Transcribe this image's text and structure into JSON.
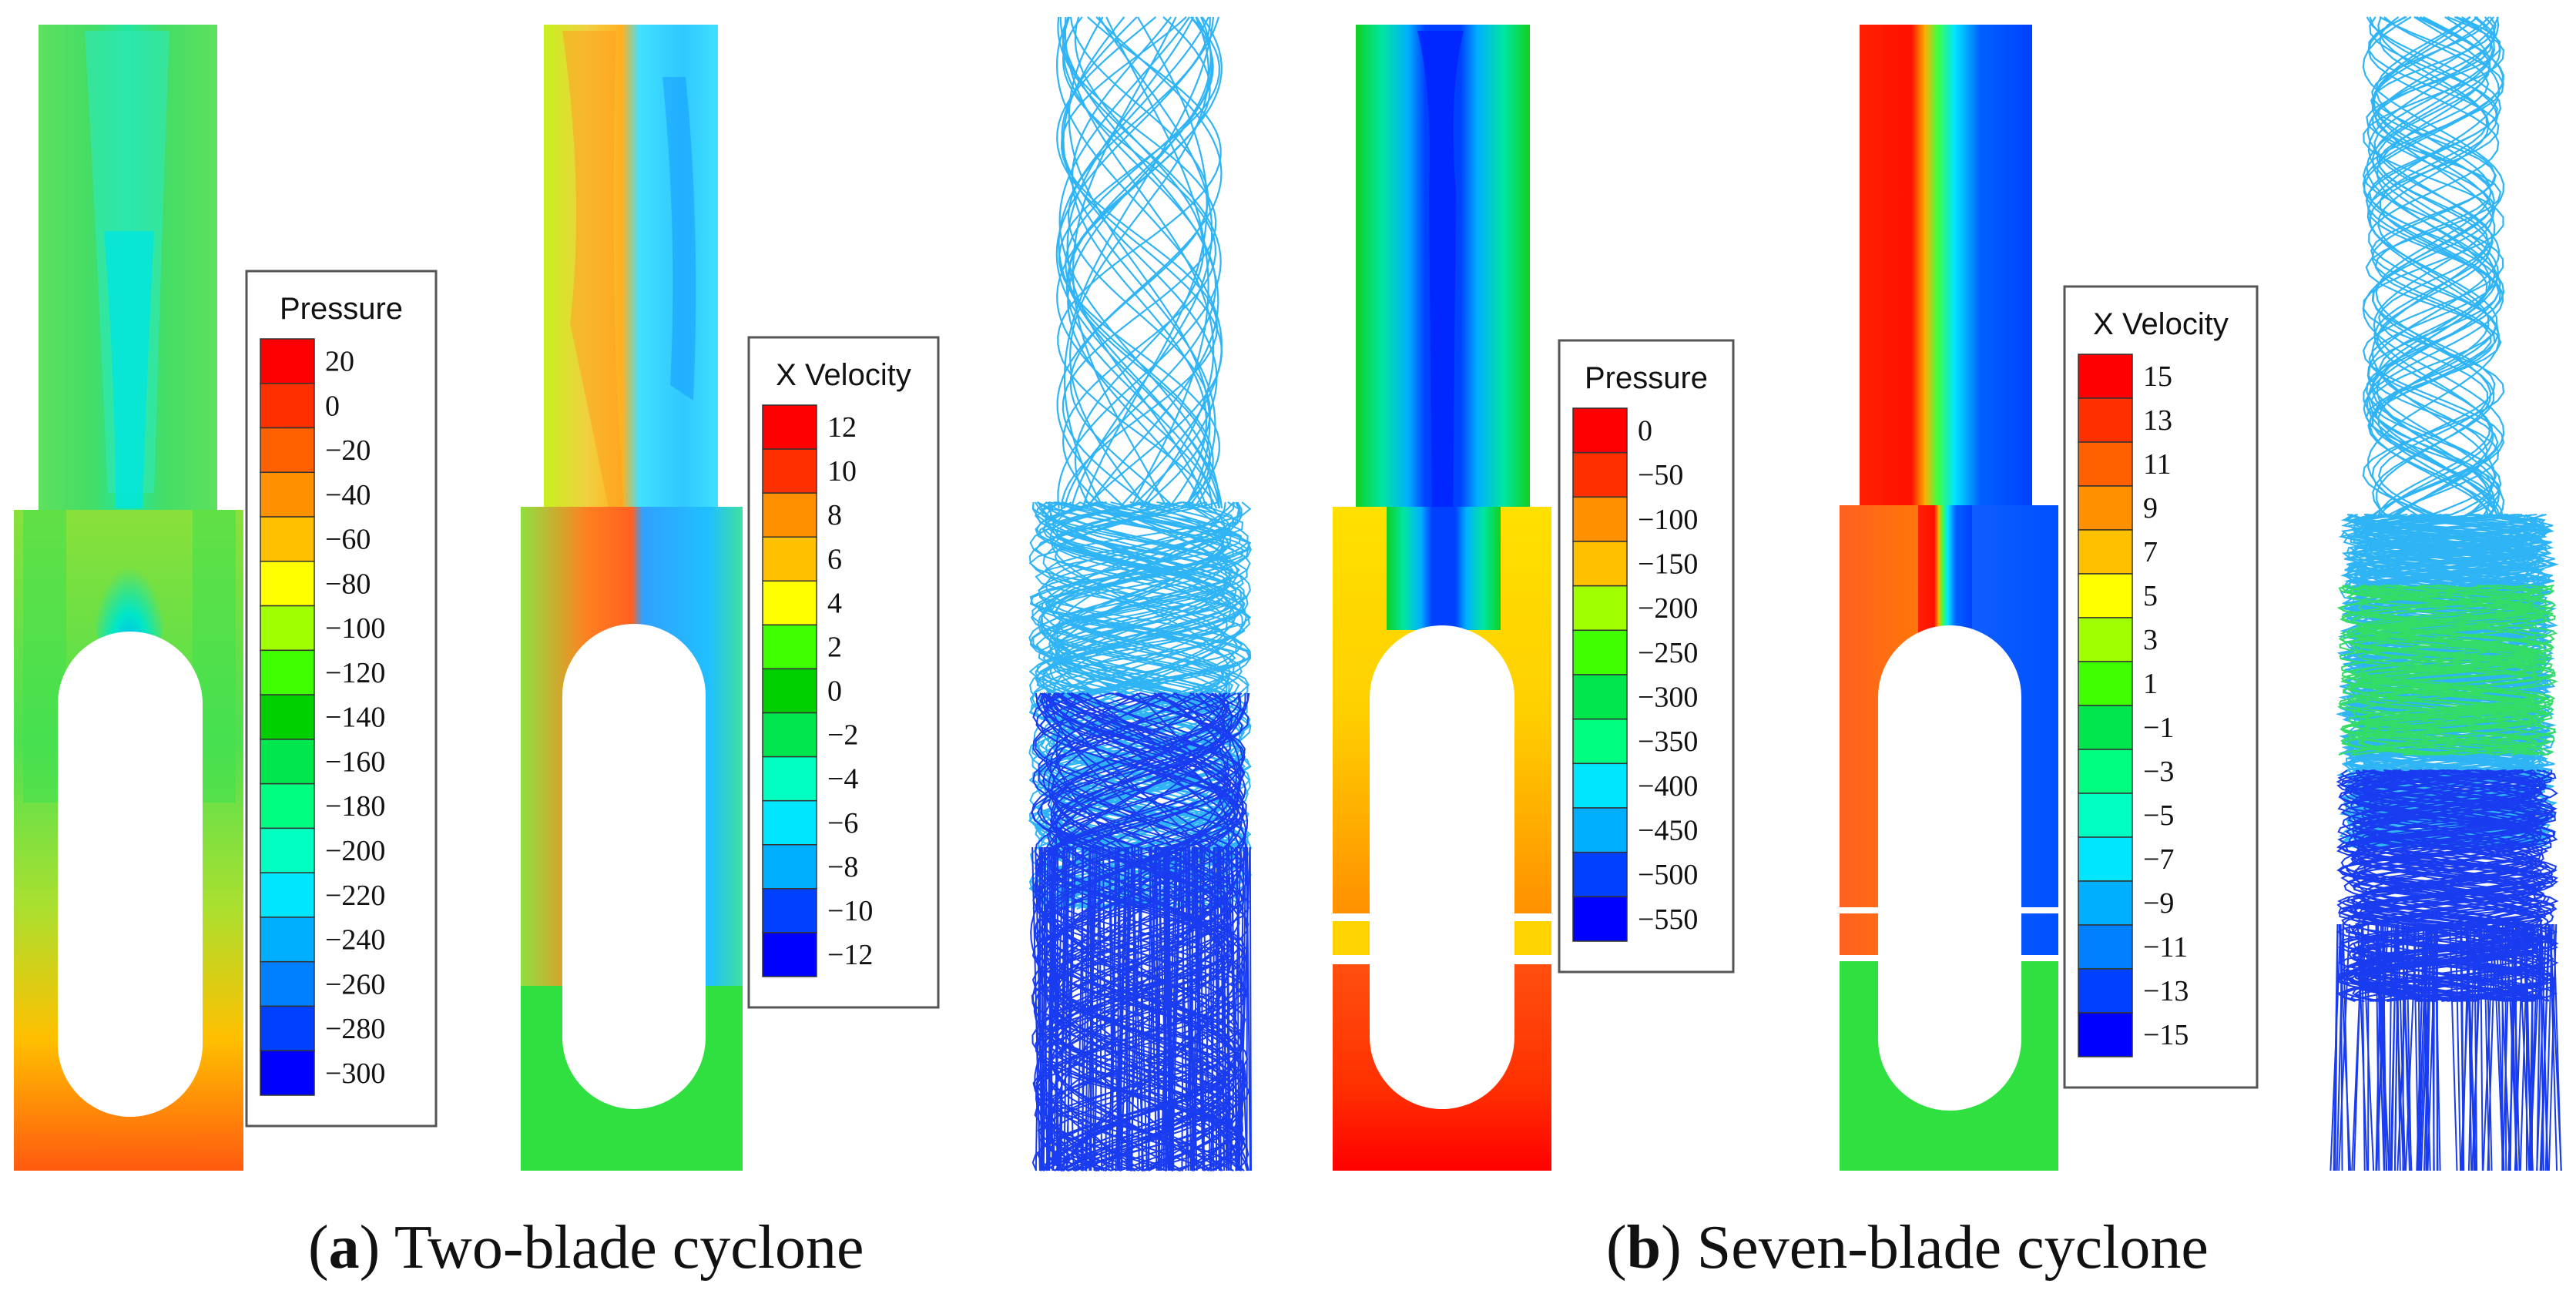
{
  "palette": [
    "#0000ff",
    "#0040ff",
    "#0080ff",
    "#00b0ff",
    "#00e6ff",
    "#00ffc0",
    "#00ff80",
    "#00e64d",
    "#00d000",
    "#40ff00",
    "#a0ff00",
    "#ffff00",
    "#ffc000",
    "#ff9000",
    "#ff6000",
    "#ff3000",
    "#ff0000"
  ],
  "colors": {
    "streamline_dark": "#1a3cf0",
    "streamline_light": "#2fb4f5",
    "streamline_green": "#33dd66",
    "legend_border": "#555555"
  },
  "legends": [
    {
      "title": "Pressure",
      "labels": [
        "20",
        "0",
        "−20",
        "−40",
        "−60",
        "−80",
        "−100",
        "−120",
        "−140",
        "−160",
        "−180",
        "−200",
        "−220",
        "−240",
        "−260",
        "−280",
        "−300"
      ]
    },
    {
      "title": "X Velocity",
      "labels": [
        "12",
        "10",
        "8",
        "6",
        "4",
        "2",
        "0",
        "−2",
        "−4",
        "−6",
        "−8",
        "−10",
        "−12"
      ]
    },
    {
      "title": "Pressure",
      "labels": [
        "0",
        "−50",
        "−100",
        "−150",
        "−200",
        "−250",
        "−300",
        "−350",
        "−400",
        "−450",
        "−500",
        "−550"
      ]
    },
    {
      "title": "X Velocity",
      "labels": [
        "15",
        "13",
        "11",
        "9",
        "7",
        "5",
        "3",
        "1",
        "−1",
        "−3",
        "−5",
        "−7",
        "−9",
        "−11",
        "−13",
        "−15"
      ]
    }
  ],
  "captions": {
    "a": {
      "letter": "a",
      "text": " Two-blade cyclone"
    },
    "b": {
      "letter": "b",
      "text": " Seven-blade cyclone"
    }
  }
}
